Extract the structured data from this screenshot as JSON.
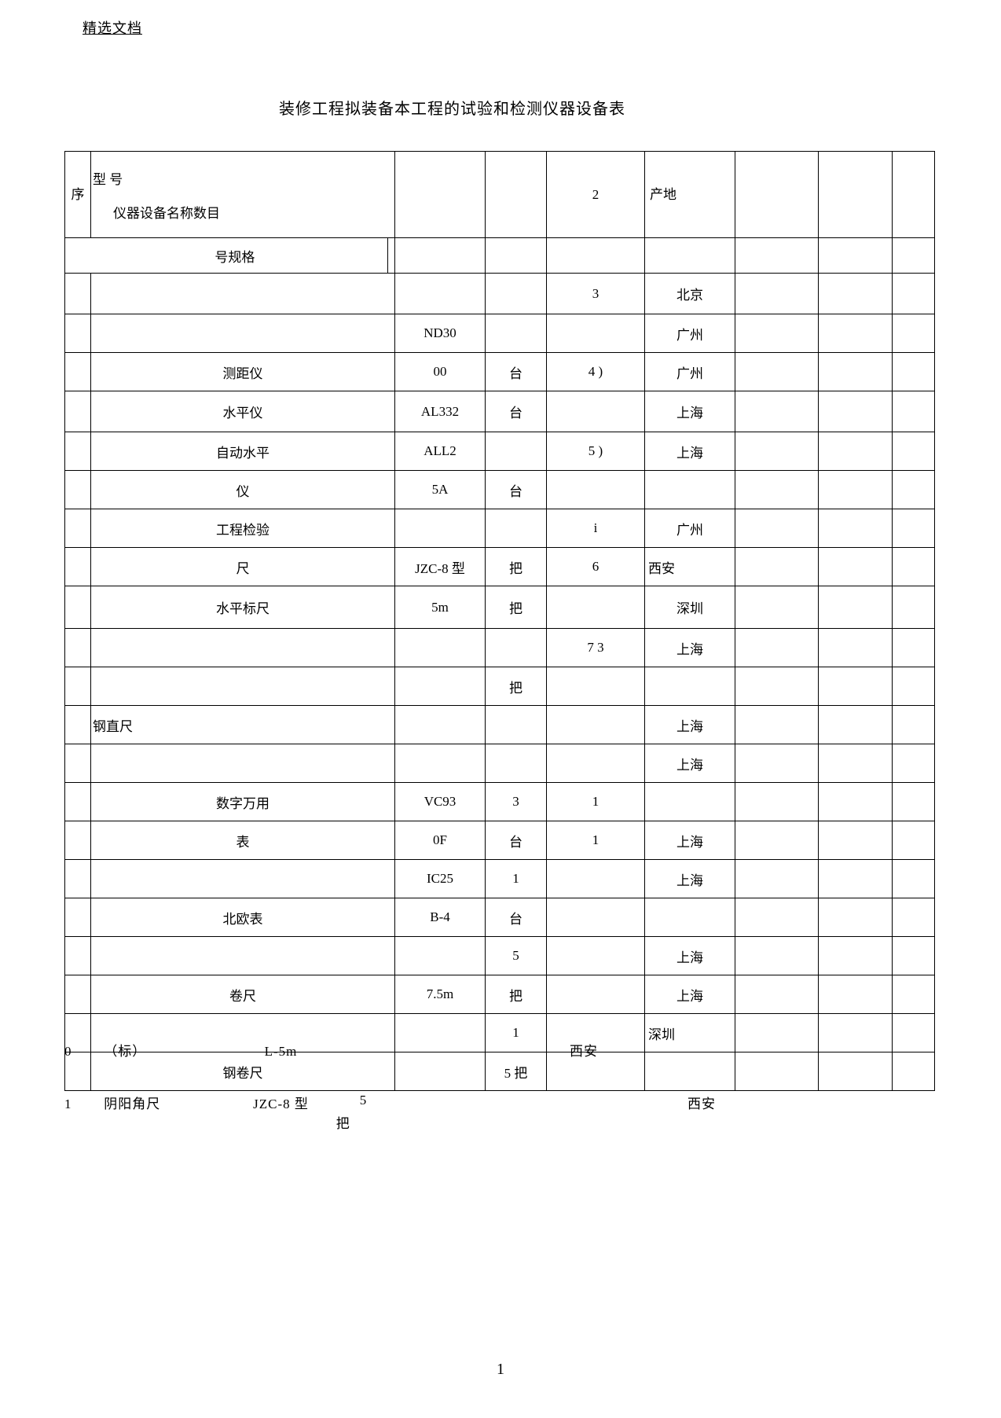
{
  "header_label": "精选文档",
  "title": "装修工程拟装备本工程的试验和检测仪器设备表",
  "page_number": "1",
  "columns": {
    "seq_top": "序",
    "seq_sub": "号",
    "type_top": "型 号",
    "type_sub": "规格",
    "name_label": "仪器设备名称",
    "qty_label": "数目",
    "mid_top": "2",
    "origin_label": "产地"
  },
  "rows": [
    {
      "seq": "",
      "name": "",
      "spec": "",
      "qty": "",
      "mid": "3",
      "origin": "北京"
    },
    {
      "seq": "",
      "name": "",
      "spec": "ND30",
      "qty": "",
      "mid": "",
      "origin": "广州"
    },
    {
      "seq": "",
      "name": "测距仪",
      "spec": "00",
      "qty": "台",
      "mid": "4    )",
      "origin": "广州"
    },
    {
      "seq": "",
      "name": "水平仪",
      "spec": "AL332",
      "qty": "台",
      "mid": "",
      "origin": "上海"
    },
    {
      "seq": "",
      "name": "自动水平",
      "spec": "ALL2",
      "qty": "",
      "mid": "5    )",
      "origin": "上海"
    },
    {
      "seq": "",
      "name": "仪",
      "spec": "5A",
      "qty": "台",
      "mid": "",
      "origin": ""
    },
    {
      "seq": "",
      "name": "工程检验",
      "spec": "",
      "qty": "",
      "mid": "i",
      "origin": "广州"
    },
    {
      "seq": "",
      "name": "尺",
      "spec": "JZC-8 型",
      "qty": "把",
      "mid": "6",
      "origin": "西安",
      "origin_left": true
    },
    {
      "seq": "",
      "name": "水平标尺",
      "spec": "5m",
      "qty": "把",
      "mid": "",
      "origin": "深圳"
    },
    {
      "seq": "",
      "name": "",
      "spec": "",
      "qty": "",
      "mid": "7   3",
      "origin": "上海"
    },
    {
      "seq": "",
      "name": "",
      "spec": "",
      "qty": "把",
      "mid": "",
      "origin": ""
    },
    {
      "seq": "",
      "name": "钢直尺",
      "spec": "",
      "qty": "",
      "mid": "",
      "origin": "上海",
      "name_left": true
    },
    {
      "seq": "",
      "name": "",
      "spec": "",
      "qty": "",
      "mid": "",
      "origin": "上海"
    },
    {
      "seq": "",
      "name": "数字万用",
      "spec": "VC93",
      "qty": "3",
      "mid": "1",
      "origin": ""
    },
    {
      "seq": "",
      "name": "表",
      "spec": "0F",
      "qty": "台",
      "mid": "1",
      "origin": "上海"
    },
    {
      "seq": "",
      "name": "",
      "spec": "IC25",
      "qty": "1",
      "mid": "",
      "origin": "上海"
    },
    {
      "seq": "",
      "name": "北欧表",
      "spec": "B-4",
      "qty": "台",
      "mid": "",
      "origin": ""
    },
    {
      "seq": "",
      "name": "",
      "spec": "",
      "qty": "5",
      "mid": "",
      "origin": "上海"
    },
    {
      "seq": "",
      "name": "卷尺",
      "spec": "7.5m",
      "qty": "把",
      "mid": "",
      "origin": "上海"
    },
    {
      "seq": "",
      "name": "",
      "spec": "",
      "qty": "1",
      "mid": "",
      "origin": "深圳",
      "origin_left": true
    },
    {
      "seq": "",
      "name": "钢卷尺",
      "spec": "",
      "qty": "5 把",
      "mid": "",
      "origin": ""
    }
  ],
  "bottom_rows": [
    {
      "seq": "0",
      "name": "（标）",
      "spec": "L-5m",
      "qty": "",
      "origin": "西安"
    },
    {
      "seq": "1",
      "name": "阴阳角尺",
      "spec": "JZC-8 型",
      "qty": "5\n把",
      "origin": "西安"
    }
  ]
}
